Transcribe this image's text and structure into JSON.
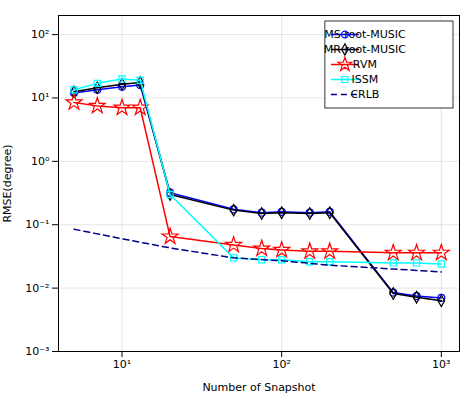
{
  "chart_data": {
    "type": "line",
    "xlabel": "Number of Snapshot",
    "ylabel": "RMSE(degree)",
    "log": true,
    "grid": true,
    "legend": "upper right",
    "xlim": [
      4,
      1300
    ],
    "ylim": [
      0.001,
      200
    ],
    "xticks": [
      {
        "value": 10,
        "label": "10¹"
      },
      {
        "value": 100,
        "label": "10²"
      },
      {
        "value": 1000,
        "label": "10³"
      }
    ],
    "yticks": [
      {
        "value": 0.001,
        "label": "10⁻³"
      },
      {
        "value": 0.01,
        "label": "10⁻²"
      },
      {
        "value": 0.1,
        "label": "10⁻¹"
      },
      {
        "value": 1,
        "label": "10⁰"
      },
      {
        "value": 10,
        "label": "10¹"
      },
      {
        "value": 100,
        "label": "10²"
      }
    ],
    "series": [
      {
        "name": "MS root-MUSIC",
        "color": "#0000FF",
        "marker": "circle",
        "line_style": "solid",
        "x": [
          5,
          7,
          10,
          13,
          20,
          50,
          75,
          100,
          150,
          200,
          500,
          700,
          1000
        ],
        "values": [
          12.0,
          13.5,
          15.0,
          16.0,
          0.32,
          0.175,
          0.155,
          0.16,
          0.155,
          0.16,
          0.0085,
          0.0075,
          0.007
        ]
      },
      {
        "name": "MR root-MUSIC",
        "color": "#000000",
        "marker": "diamond",
        "line_style": "solid",
        "x": [
          5,
          7,
          10,
          13,
          20,
          50,
          75,
          100,
          150,
          200,
          500,
          700,
          1000
        ],
        "values": [
          12.5,
          14.5,
          16.5,
          17.5,
          0.3,
          0.17,
          0.15,
          0.155,
          0.15,
          0.155,
          0.0082,
          0.0072,
          0.0063
        ]
      },
      {
        "name": "RVM",
        "color": "#FF0000",
        "marker": "star",
        "line_style": "solid",
        "x": [
          5,
          7,
          10,
          13,
          20,
          50,
          75,
          100,
          150,
          200,
          500,
          700,
          1000
        ],
        "values": [
          8.5,
          7.5,
          7.0,
          7.0,
          0.065,
          0.048,
          0.042,
          0.04,
          0.038,
          0.038,
          0.036,
          0.036,
          0.036
        ]
      },
      {
        "name": "ISSM",
        "color": "#00FFFF",
        "marker": "square",
        "line_style": "solid",
        "x": [
          5,
          7,
          10,
          13,
          20,
          50,
          75,
          100,
          150,
          200,
          500,
          700,
          1000
        ],
        "values": [
          13.5,
          17.0,
          20.0,
          19.0,
          0.3,
          0.03,
          0.028,
          0.028,
          0.026,
          0.026,
          0.025,
          0.025,
          0.024
        ]
      },
      {
        "name": "CRLB",
        "color": "#00008B",
        "marker": "none",
        "line_style": "dashed",
        "x": [
          5,
          10,
          20,
          50,
          100,
          200,
          500,
          1000
        ],
        "values": [
          0.085,
          0.06,
          0.043,
          0.03,
          0.027,
          0.023,
          0.02,
          0.018
        ]
      }
    ]
  }
}
